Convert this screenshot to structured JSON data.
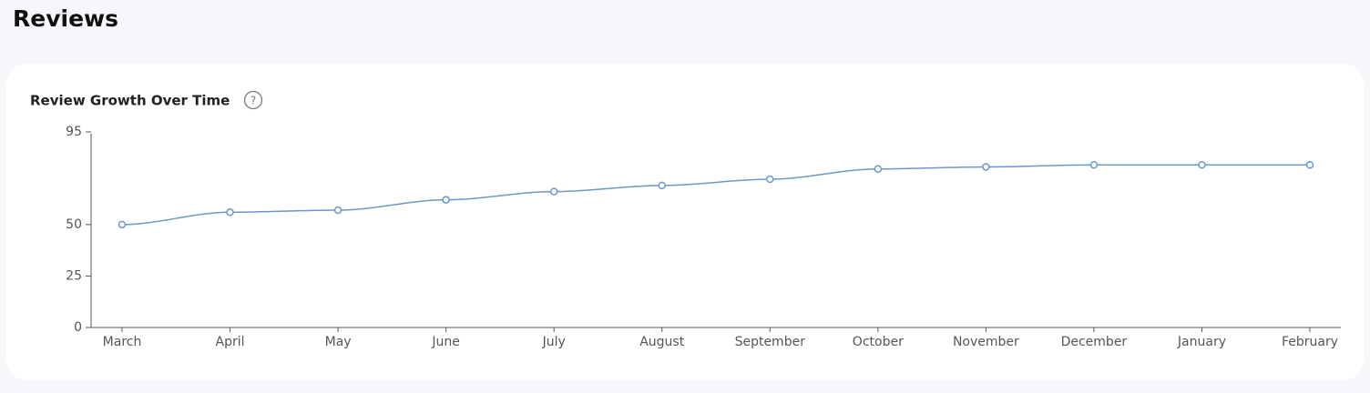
{
  "header": {
    "title": "Reviews"
  },
  "chart_data": {
    "type": "line",
    "title": "Review Growth Over Time",
    "categories": [
      "March",
      "April",
      "May",
      "June",
      "July",
      "August",
      "September",
      "October",
      "November",
      "December",
      "January",
      "February"
    ],
    "values": [
      50,
      56,
      57,
      62,
      66,
      69,
      72,
      77,
      78,
      79,
      79,
      79
    ],
    "color": "#6b98c4",
    "ylim": [
      0,
      95
    ],
    "yticks": [
      0,
      25,
      50,
      95
    ],
    "grid": false
  }
}
